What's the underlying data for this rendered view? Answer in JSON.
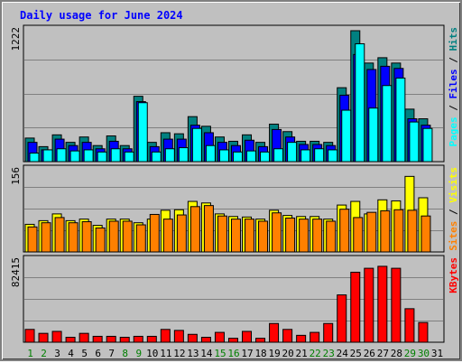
{
  "chart_data": {
    "type": "bar",
    "title": "Daily usage for June 2024",
    "categories": [
      "1",
      "2",
      "3",
      "4",
      "5",
      "6",
      "7",
      "8",
      "9",
      "10",
      "11",
      "12",
      "13",
      "14",
      "15",
      "16",
      "17",
      "18",
      "19",
      "20",
      "21",
      "22",
      "23",
      "24",
      "25",
      "26",
      "27",
      "28",
      "29",
      "30",
      "31"
    ],
    "weekend_days": [
      "1",
      "2",
      "8",
      "9",
      "15",
      "16",
      "22",
      "23",
      "29",
      "30"
    ],
    "panels": [
      {
        "name": "hits-files-pages",
        "ymax_label": "1222",
        "ymax": 1222,
        "legend": [
          "Pages",
          "Files",
          "Hits"
        ],
        "legend_separator": "/",
        "series": [
          {
            "name": "Hits",
            "color": "#008080",
            "values": [
              220,
              140,
              250,
              180,
              230,
              150,
              240,
              150,
              610,
              180,
              270,
              260,
              420,
              330,
              230,
              190,
              250,
              180,
              350,
              280,
              190,
              190,
              180,
              690,
              1222,
              920,
              970,
              920,
              490,
              400
            ]
          },
          {
            "name": "Files",
            "color": "#0000ff",
            "values": [
              180,
              110,
              210,
              150,
              180,
              120,
              190,
              120,
              560,
              140,
              210,
              210,
              340,
              270,
              180,
              150,
              200,
              140,
              300,
              230,
              160,
              160,
              150,
              620,
              1000,
              860,
              890,
              870,
              400,
              340
            ]
          },
          {
            "name": "Pages",
            "color": "#00ffff",
            "values": [
              80,
              110,
              120,
              100,
              110,
              90,
              120,
              90,
              550,
              90,
              120,
              130,
              310,
              150,
              110,
              90,
              100,
              90,
              120,
              180,
              110,
              120,
              110,
              480,
              1100,
              500,
              710,
              780,
              370,
              310
            ]
          }
        ]
      },
      {
        "name": "visits-sites",
        "ymax_label": "156",
        "ymax": 156,
        "legend": [
          "Sites",
          "Visits"
        ],
        "legend_separator": "/",
        "series": [
          {
            "name": "Visits",
            "color": "#ffff00",
            "values": [
              53,
              60,
              73,
              60,
              63,
              51,
              63,
              63,
              56,
              63,
              80,
              81,
              97,
              94,
              73,
              68,
              67,
              63,
              80,
              70,
              68,
              68,
              63,
              90,
              97,
              73,
              100,
              98,
              145,
              104
            ]
          },
          {
            "name": "Sites",
            "color": "#ff8000",
            "values": [
              48,
              56,
              66,
              56,
              58,
              46,
              59,
              59,
              52,
              72,
              63,
              71,
              87,
              89,
              69,
              63,
              63,
              59,
              75,
              65,
              63,
              63,
              59,
              82,
              66,
              76,
              79,
              81,
              80,
              69
            ]
          }
        ]
      },
      {
        "name": "kbytes",
        "ymax_label": "82415",
        "ymax": 82415,
        "legend": [
          "KBytes"
        ],
        "series": [
          {
            "name": "KBytes",
            "color": "#ff0000",
            "values": [
              13000,
              9000,
              11000,
              5000,
              9000,
              6000,
              6000,
              5000,
              6000,
              6000,
              13000,
              12000,
              8000,
              5000,
              10000,
              4000,
              11000,
              4000,
              19000,
              13000,
              7000,
              10000,
              19000,
              48000,
              71000,
              75000,
              77000,
              75000,
              34000,
              20000
            ]
          }
        ]
      }
    ]
  }
}
